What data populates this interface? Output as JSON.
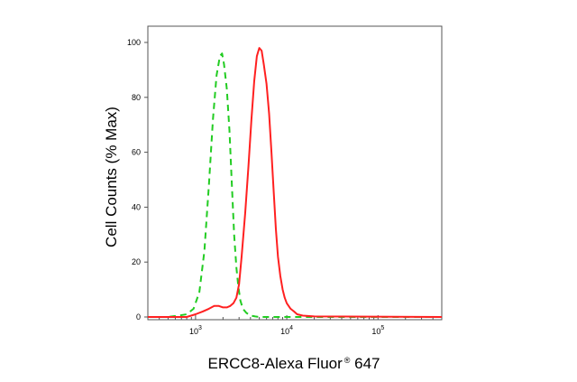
{
  "chart_data": {
    "type": "line",
    "xlabel": "ERCC8-Alexa Fluor",
    "xlabel_mark": "®",
    "xlabel_suffix": " 647",
    "ylabel": "Cell Counts (% Max)",
    "x_scale": "log",
    "xlim": [
      300,
      500000
    ],
    "ylim": [
      0,
      100
    ],
    "y_ticks": [
      0,
      20,
      40,
      60,
      80,
      100
    ],
    "x_ticks": [
      {
        "value": 1000,
        "base": "10",
        "exp": "3"
      },
      {
        "value": 10000,
        "base": "10",
        "exp": "4"
      },
      {
        "value": 100000,
        "base": "10",
        "exp": "5"
      }
    ],
    "grid": false,
    "legend": "none",
    "series": [
      {
        "color": "#22cc22",
        "style": "dashed",
        "x": [
          300,
          500,
          650,
          800,
          950,
          1100,
          1250,
          1400,
          1550,
          1700,
          1850,
          1950,
          2050,
          2200,
          2350,
          2500,
          2650,
          2800,
          2950,
          3100,
          3300,
          3600,
          4000,
          4500,
          5000,
          6000,
          500000
        ],
        "y": [
          0,
          0,
          0.5,
          1,
          3,
          9,
          24,
          48,
          72,
          88,
          95,
          96,
          92,
          83,
          68,
          48,
          30,
          18,
          11,
          6,
          3,
          1.5,
          0.5,
          0.2,
          0,
          0,
          0
        ]
      },
      {
        "color": "#ff2020",
        "style": "solid",
        "x": [
          300,
          800,
          1000,
          1200,
          1400,
          1600,
          1800,
          2000,
          2200,
          2400,
          2600,
          2800,
          3000,
          3200,
          3500,
          3800,
          4100,
          4400,
          4700,
          5000,
          5300,
          5600,
          6000,
          6400,
          6800,
          7200,
          7600,
          8000,
          8500,
          9000,
          9500,
          10000,
          11000,
          12000,
          13000,
          15000,
          20000,
          500000
        ],
        "y": [
          0,
          0,
          1,
          2,
          3,
          4,
          4,
          3.5,
          3.5,
          4,
          5,
          7,
          12,
          22,
          38,
          55,
          72,
          86,
          95,
          98,
          97,
          92,
          85,
          74,
          60,
          45,
          32,
          22,
          15,
          10,
          7,
          5,
          3,
          2,
          1,
          0.5,
          0.2,
          0
        ]
      }
    ]
  }
}
